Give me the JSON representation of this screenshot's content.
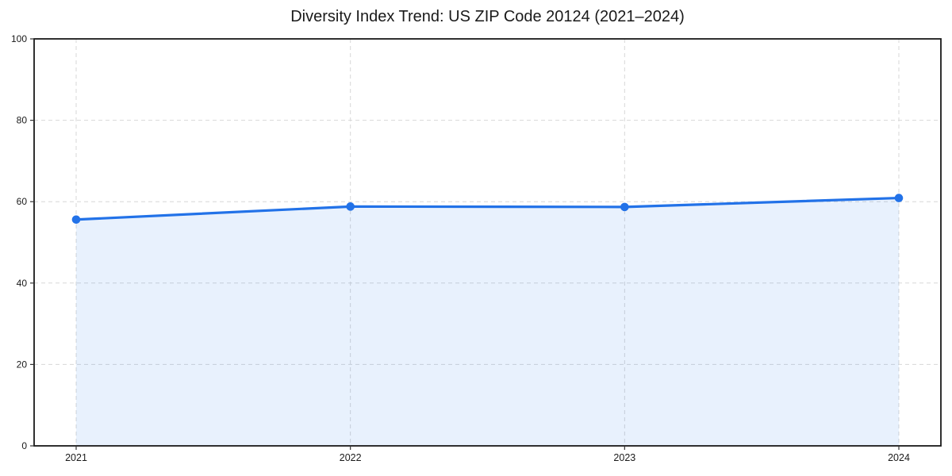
{
  "page": {
    "background": "#ffffff"
  },
  "chart_data": {
    "type": "area",
    "title": "Diversity Index Trend: US ZIP Code 20124 (2021–2024)",
    "categories": [
      "2021",
      "2022",
      "2023",
      "2024"
    ],
    "series": [
      {
        "name": "Diversity Index",
        "values": [
          55.6,
          58.8,
          58.7,
          60.9
        ]
      }
    ],
    "xlabel": "",
    "ylabel": "",
    "ylim": [
      0,
      100
    ],
    "yticks": [
      0,
      20,
      40,
      60,
      80,
      100
    ],
    "grid": {
      "visible": true,
      "style": "dashed",
      "axes": "both"
    },
    "legend": {
      "visible": false
    },
    "style": {
      "line_color": "#2272e8",
      "marker_color": "#2272e8",
      "fill_color": "#2272e8",
      "fill_opacity": 0.1,
      "grid_color": "#d7d7d7",
      "spine_color": "#1a1a1a",
      "tick_color": "#333333",
      "text_color": "#1a1a1a",
      "background": "#ffffff"
    }
  }
}
